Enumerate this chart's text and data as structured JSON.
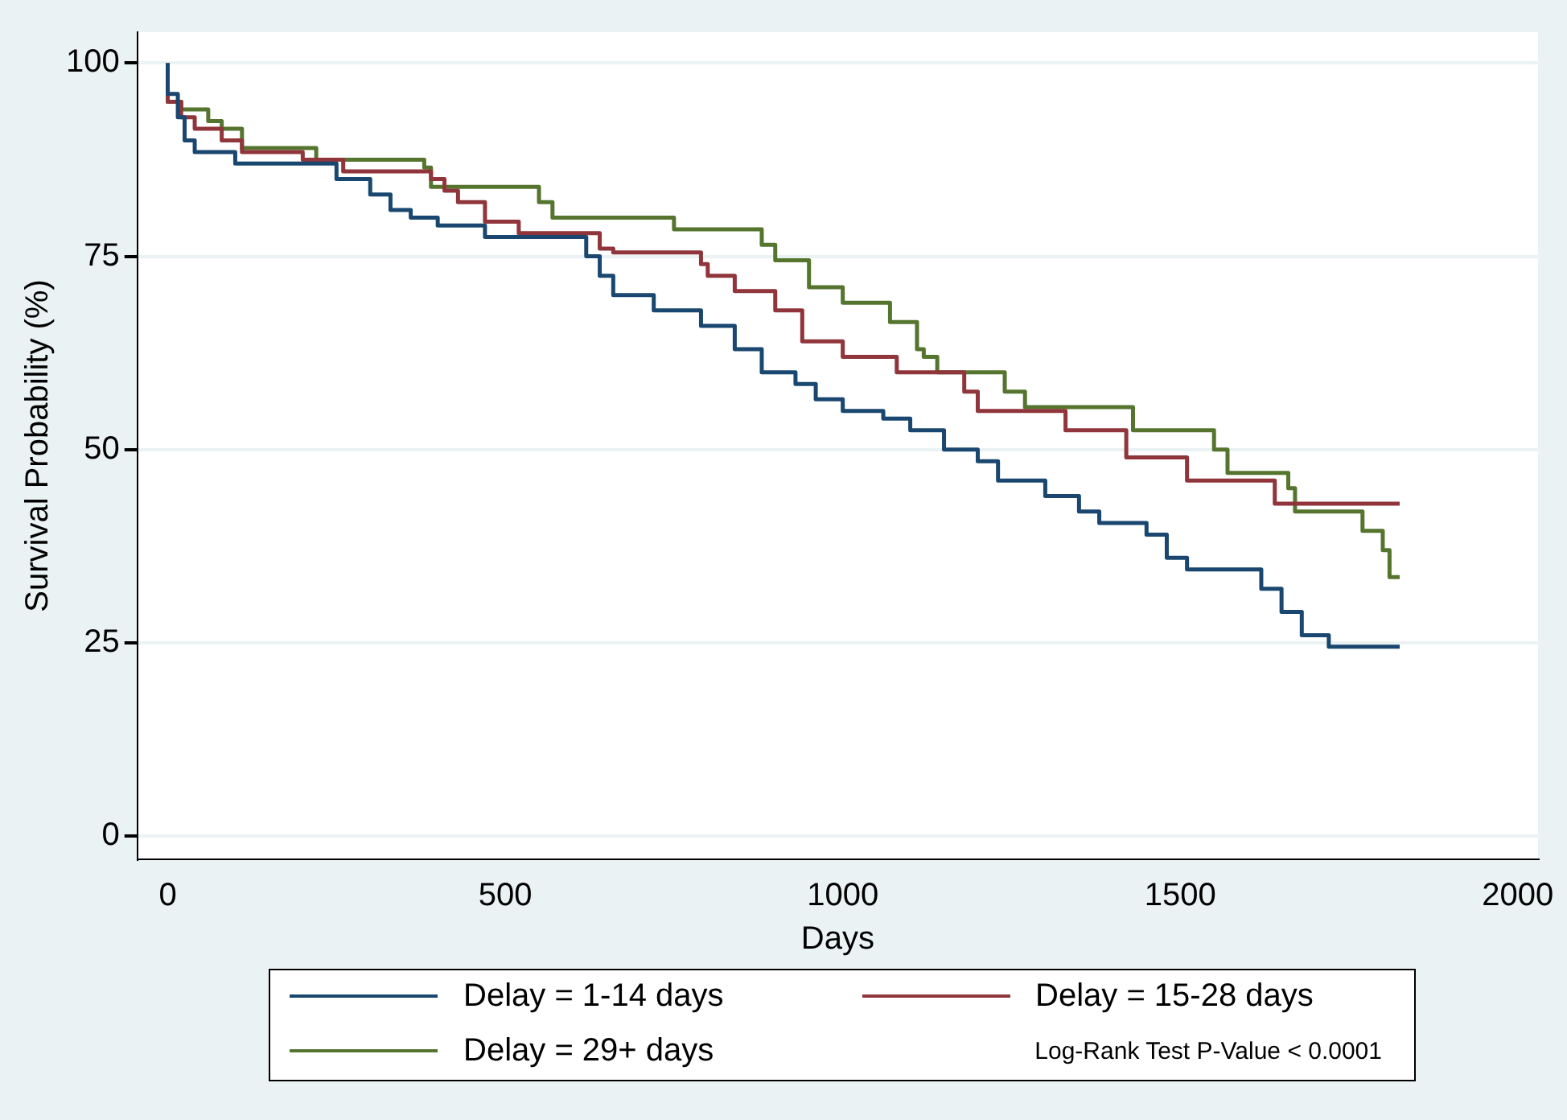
{
  "chart_data": {
    "type": "step",
    "xlabel": "Days",
    "ylabel": "Survival Probability (%)",
    "xlim": [
      -45,
      2030
    ],
    "ylim": [
      -3,
      104
    ],
    "xticks": [
      0,
      500,
      1000,
      1500,
      2000
    ],
    "yticks": [
      0,
      25,
      50,
      75,
      100
    ],
    "grid": "y",
    "legend": "bottom",
    "marker": "none",
    "line_style": "solid",
    "annotations": [
      "Log-Rank Test P-Value < 0.0001"
    ],
    "series": [
      {
        "name": "Delay = 1-14 days",
        "color": "#1a476f",
        "x": [
          0,
          15,
          25,
          40,
          100,
          250,
          300,
          330,
          360,
          400,
          470,
          520,
          620,
          640,
          660,
          720,
          790,
          840,
          880,
          930,
          960,
          1000,
          1060,
          1100,
          1150,
          1200,
          1230,
          1300,
          1350,
          1380,
          1450,
          1480,
          1510,
          1620,
          1650,
          1680,
          1720,
          1800,
          1825
        ],
        "values": [
          100,
          96,
          93,
          90,
          88.5,
          87,
          85,
          83,
          81,
          80,
          79,
          77.5,
          77.5,
          75,
          72.5,
          70,
          68,
          66,
          63,
          60,
          58.5,
          56.5,
          55,
          54,
          52.5,
          50,
          48.5,
          46,
          44,
          42,
          40.5,
          39,
          36,
          34.5,
          32,
          29,
          26,
          24.5,
          24.5
        ]
      },
      {
        "name": "Delay = 15-28 days",
        "color": "#90353b",
        "x": [
          0,
          20,
          40,
          80,
          110,
          200,
          260,
          390,
          410,
          430,
          470,
          520,
          640,
          660,
          790,
          800,
          840,
          900,
          940,
          1000,
          1080,
          1180,
          1200,
          1330,
          1420,
          1510,
          1640,
          1810,
          1825
        ],
        "values": [
          100,
          95,
          93,
          91.5,
          90,
          88.5,
          87.5,
          86,
          85,
          83.5,
          82,
          79.5,
          78,
          76,
          75.5,
          74,
          72.5,
          70.5,
          68,
          64,
          62,
          60,
          57.5,
          55,
          52.5,
          49,
          46,
          43,
          43
        ]
      },
      {
        "name": "Delay = 29+ days",
        "color": "#55752f",
        "x": [
          0,
          20,
          60,
          80,
          110,
          220,
          380,
          390,
          550,
          570,
          750,
          880,
          900,
          950,
          1000,
          1070,
          1110,
          1120,
          1140,
          1240,
          1270,
          1430,
          1550,
          1570,
          1660,
          1670,
          1770,
          1800,
          1810,
          1815,
          1825
        ],
        "values": [
          100,
          95,
          94,
          92.5,
          91.5,
          89,
          87.5,
          86.5,
          84,
          82,
          80,
          78.5,
          76.5,
          74.5,
          71,
          69,
          66.5,
          63,
          62,
          60,
          57.5,
          55.5,
          52.5,
          50,
          47,
          45,
          42,
          39.5,
          37,
          33.5,
          33.5
        ]
      }
    ]
  }
}
